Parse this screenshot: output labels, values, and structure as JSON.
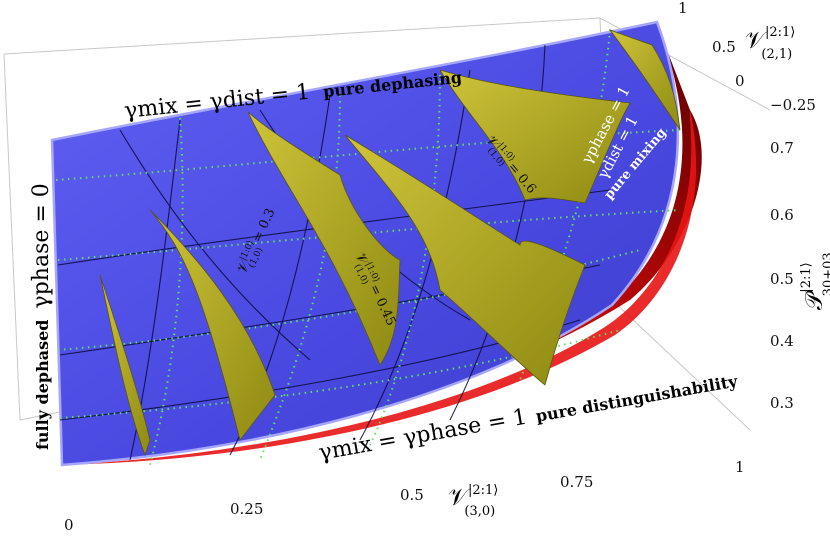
{
  "chart_data": {
    "type": "surface3d",
    "axes": {
      "x": {
        "label": "V^{|2:1⟩}_{(3,0)}",
        "label_main": "𝒱",
        "label_sup": "|2:1⟩",
        "label_sub": "(3,0)",
        "range": [
          0,
          1
        ],
        "ticks": [
          "0",
          "0.25",
          "0.5",
          "0.75",
          "1"
        ]
      },
      "y": {
        "label": "V^{|2:1⟩}_{(2,1)}",
        "label_main": "𝒱",
        "label_sup": "|2:1⟩",
        "label_sub": "(2,1)",
        "range": [
          -0.25,
          1
        ],
        "ticks": [
          "1",
          "0.5",
          "0",
          "−0.25"
        ]
      },
      "z": {
        "label": "P^{|2:1⟩}_{30+03}",
        "label_main": "𝒫",
        "label_sup": "|2:1⟩",
        "label_sub": "30+03",
        "range": [
          0.25,
          0.75
        ],
        "ticks": [
          "0.7",
          "0.6",
          "0.5",
          "0.4",
          "0.3"
        ]
      }
    },
    "surfaces": [
      {
        "name": "pure dephasing surface",
        "color": "#5a5af0"
      },
      {
        "name": "pure distinguishability surface",
        "color": "#d81010"
      },
      {
        "name": "V^{(1,0)} contour sheets",
        "color": "#b8ae1e"
      }
    ],
    "contour_levels": [
      0.15,
      0.3,
      0.45,
      0.6,
      0.75
    ],
    "contour_labels": [
      {
        "lhs": "𝒱",
        "sup": "|1:0⟩",
        "sub": "(1,0)",
        "value": "0.3"
      },
      {
        "lhs": "𝒱",
        "sup": "|1:0⟩",
        "sub": "(1,0)",
        "value": "0.45"
      },
      {
        "lhs": "𝒱",
        "sup": "|1:0⟩",
        "sub": "(1,0)",
        "value": "0.6"
      }
    ],
    "annotations": {
      "top_edge": {
        "formula": "γmix = γdist = 1",
        "label": "pure dephasing"
      },
      "left_edge": {
        "label": "fully dephased",
        "formula": "γphase = 0"
      },
      "bottom_edge": {
        "formula": "γmix = γphase = 1",
        "label": "pure distinguishability"
      },
      "right_edge": {
        "formula1": "γphase = 1",
        "formula2": "γdist = 1",
        "label": "pure mixing"
      }
    }
  }
}
